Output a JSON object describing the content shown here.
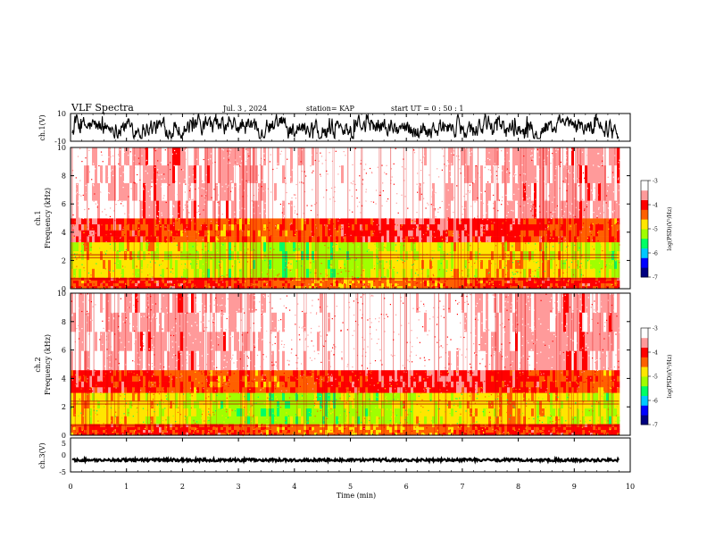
{
  "header": {
    "title": "VLF Spectra",
    "date": "Jul. 3 , 2024",
    "station": "station= KAP",
    "start": "start UT = 0 : 50 : 1"
  },
  "chart_data": [
    {
      "type": "line",
      "title": "",
      "ylabel": "ch.1(V)",
      "ylim": [
        -10,
        10
      ],
      "y_ticks": [
        "10",
        "-10"
      ],
      "description_values": {
        "mean": 0,
        "approx_range": [
          -7,
          10
        ]
      },
      "color": "#000000"
    },
    {
      "type": "heatmap",
      "ylabel": "ch.1 Frequency (kHz)",
      "ylim": [
        0,
        10
      ],
      "y_ticks": [
        "0",
        "2",
        "4",
        "6",
        "8",
        "10"
      ],
      "xlim": [
        0,
        10
      ],
      "x_data_end_min": 9.8,
      "colorbar": {
        "label": "log(PSD)(V²/Hz)",
        "range": [
          -7,
          -3
        ],
        "ticks": [
          "-3",
          "-4",
          "-5",
          "-6",
          "-7"
        ],
        "colors": [
          "#000080",
          "#0000ff",
          "#00c8ff",
          "#00ff64",
          "#a0ff00",
          "#ffe600",
          "#ff6000",
          "#ff0000",
          "#ff9a9a",
          "#ffffff"
        ]
      },
      "bands_khz": [
        {
          "range": [
            0,
            0.8
          ],
          "level": -4.3
        },
        {
          "range": [
            0.8,
            3.3
          ],
          "level": -5.0
        },
        {
          "range": [
            3.3,
            5.0
          ],
          "level": -4.1
        },
        {
          "range": [
            5.0,
            10.0
          ],
          "level": -3.3
        }
      ]
    },
    {
      "type": "heatmap",
      "ylabel": "ch.2 Frequency (kHz)",
      "ylim": [
        0,
        10
      ],
      "y_ticks": [
        "0",
        "2",
        "4",
        "6",
        "8",
        "10"
      ],
      "xlim": [
        0,
        10
      ],
      "x_data_end_min": 9.8,
      "colorbar": {
        "label": "log(PSD)(V²/Hz)",
        "range": [
          -7,
          -3
        ],
        "ticks": [
          "-3",
          "-4",
          "-5",
          "-6",
          "-7"
        ]
      },
      "bands_khz": [
        {
          "range": [
            0,
            0.8
          ],
          "level": -4.3
        },
        {
          "range": [
            0.8,
            3.0
          ],
          "level": -5.0
        },
        {
          "range": [
            3.0,
            4.6
          ],
          "level": -4.1
        },
        {
          "range": [
            4.6,
            10.0
          ],
          "level": -3.3
        }
      ]
    },
    {
      "type": "line",
      "ylabel": "ch.3(V)",
      "ylim": [
        -5,
        5
      ],
      "y_ticks": [
        "5",
        "0",
        "-5"
      ],
      "xlabel": "Time (min)",
      "xlim": [
        0,
        10
      ],
      "x_ticks": [
        "0",
        "1",
        "2",
        "3",
        "4",
        "5",
        "6",
        "7",
        "8",
        "9",
        "10"
      ],
      "description_values": {
        "mean": -1.5,
        "approx_range": [
          -2,
          -1
        ]
      },
      "color": "#000000"
    }
  ]
}
